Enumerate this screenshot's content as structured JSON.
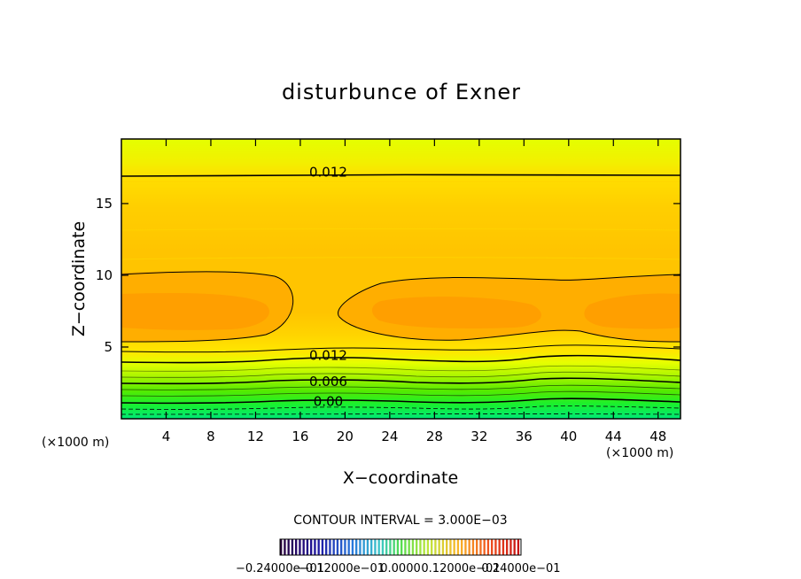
{
  "chart_data": {
    "type": "contour",
    "title": "disturbunce of Exner",
    "xlabel": "X−coordinate",
    "ylabel": "Z−coordinate",
    "xunit_left": "(×1000 m)",
    "xunit_right": "(×1000 m)",
    "xlim": [
      0,
      50
    ],
    "ylim": [
      0,
      19.5
    ],
    "xticks": [
      4,
      8,
      12,
      16,
      20,
      24,
      28,
      32,
      36,
      40,
      44,
      48
    ],
    "xtick_labels": [
      "4",
      "8",
      "12",
      "16",
      "20",
      "24",
      "28",
      "32",
      "36",
      "40",
      "44",
      "48"
    ],
    "yticks": [
      5,
      10,
      15
    ],
    "ytick_labels": [
      "5",
      "10",
      "15"
    ],
    "contour_labels": [
      {
        "text": "0.012",
        "x": 18.5,
        "y": 17.2
      },
      {
        "text": "0.012",
        "x": 18.5,
        "y": 4.4
      },
      {
        "text": "0.006",
        "x": 18.5,
        "y": 2.6
      },
      {
        "text": "0.00",
        "x": 18.5,
        "y": 1.2
      }
    ],
    "contour_interval_text": "CONTOUR INTERVAL = 3.000E−03",
    "colorbar_labels": [
      "−0.24000e−01",
      "−0.12000e−01",
      "0.0000",
      "0.12000e−01",
      "0.24000e−01"
    ],
    "colorbar_range": [
      -0.024,
      0.024
    ],
    "colors": {
      "high_orange": "#ff9f00",
      "orange": "#ffb000",
      "amber": "#ffcc00",
      "yellow": "#ffe600",
      "yellow_green": "#e2ff00",
      "green": "#39f000",
      "bright_green": "#00ff33",
      "teal_green": "#00e678"
    }
  }
}
